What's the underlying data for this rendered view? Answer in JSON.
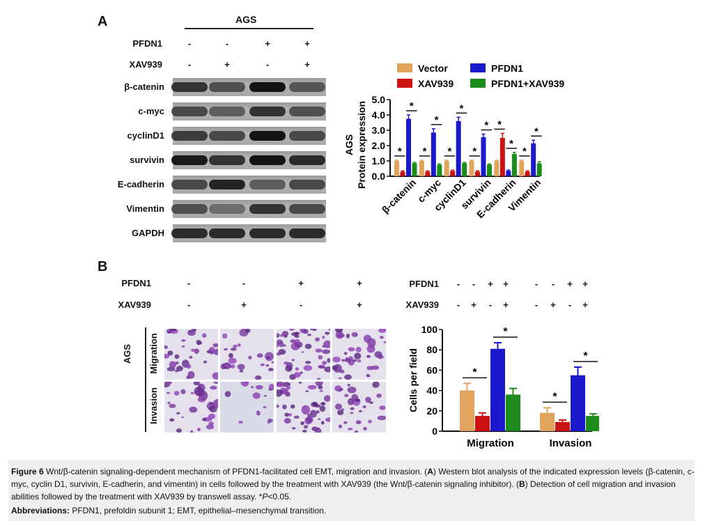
{
  "panelA": {
    "letter": "A",
    "cell_line": "AGS",
    "treatments": [
      {
        "label": "PFDN1",
        "signs": [
          "-",
          "-",
          "+",
          "+"
        ]
      },
      {
        "label": "XAV939",
        "signs": [
          "-",
          "+",
          "-",
          "+"
        ]
      }
    ],
    "blot_rows": [
      {
        "label": "β-catenin",
        "intensity": [
          0.75,
          0.55,
          0.95,
          0.5
        ]
      },
      {
        "label": "c-myc",
        "intensity": [
          0.6,
          0.45,
          0.75,
          0.55
        ]
      },
      {
        "label": "cyclinD1",
        "intensity": [
          0.7,
          0.6,
          0.95,
          0.6
        ]
      },
      {
        "label": "survivin",
        "intensity": [
          0.9,
          0.75,
          0.95,
          0.8
        ]
      },
      {
        "label": "E-cadherin",
        "intensity": [
          0.6,
          0.85,
          0.45,
          0.6
        ]
      },
      {
        "label": "Vimentin",
        "intensity": [
          0.55,
          0.3,
          0.75,
          0.6
        ]
      },
      {
        "label": "GAPDH",
        "intensity": [
          0.8,
          0.8,
          0.8,
          0.8
        ]
      }
    ]
  },
  "panelB": {
    "letter": "B",
    "treatments": [
      {
        "label": "PFDN1",
        "signs": [
          "-",
          "-",
          "+",
          "+"
        ]
      },
      {
        "label": "XAV939",
        "signs": [
          "-",
          "+",
          "-",
          "+"
        ]
      }
    ],
    "side_label": "AGS",
    "row_labels": [
      "Migration",
      "Invasion"
    ],
    "chart_treatments": [
      {
        "label": "PFDN1",
        "signs": [
          "-",
          "-",
          "+",
          "+",
          "-",
          "-",
          "+",
          "+"
        ]
      },
      {
        "label": "XAV939",
        "signs": [
          "-",
          "+",
          "-",
          "+",
          "-",
          "+",
          "-",
          "+"
        ]
      }
    ]
  },
  "colors": {
    "vector": "#e0a45c",
    "xav939": "#cc1111",
    "pfdn1": "#1a1acc",
    "pfdn1_xav939": "#1c8c1c"
  },
  "chart_data": [
    {
      "type": "bar",
      "title": "",
      "xlabel": "",
      "ylabel": "Protein expression",
      "side_label": "AGS",
      "categories": [
        "β-catenin",
        "c-myc",
        "cyclinD1",
        "survivin",
        "E-cadherin",
        "Vimentin"
      ],
      "ylim": [
        0,
        5.0
      ],
      "yticks": [
        "0.0",
        "1.0",
        "2.0",
        "3.0",
        "4.0",
        "5.0"
      ],
      "legend": [
        "Vector",
        "XAV939",
        "PFDN1",
        "PFDN1+XAV939"
      ],
      "legend_position": "top",
      "series": [
        {
          "name": "Vector",
          "values": [
            1.0,
            1.0,
            1.0,
            1.0,
            1.0,
            1.0
          ],
          "errors": [
            0.05,
            0.05,
            0.05,
            0.05,
            0.05,
            0.05
          ]
        },
        {
          "name": "XAV939",
          "values": [
            0.3,
            0.3,
            0.35,
            0.3,
            2.5,
            0.3
          ],
          "errors": [
            0.05,
            0.05,
            0.05,
            0.05,
            0.3,
            0.05
          ]
        },
        {
          "name": "PFDN1",
          "values": [
            3.75,
            2.85,
            3.6,
            2.55,
            0.35,
            2.15
          ],
          "errors": [
            0.25,
            0.25,
            0.25,
            0.2,
            0.05,
            0.2
          ]
        },
        {
          "name": "PFDN1+XAV939",
          "values": [
            0.85,
            0.75,
            0.85,
            0.75,
            1.45,
            0.85
          ],
          "errors": [
            0.05,
            0.05,
            0.05,
            0.05,
            0.1,
            0.1
          ]
        }
      ],
      "significance": "*"
    },
    {
      "type": "bar",
      "title": "",
      "xlabel": "",
      "ylabel": "Cells per field",
      "categories": [
        "Migration",
        "Invasion"
      ],
      "ylim": [
        0,
        100
      ],
      "yticks": [
        "0",
        "20",
        "40",
        "60",
        "80",
        "100"
      ],
      "series": [
        {
          "name": "Vector",
          "values": [
            40,
            18
          ],
          "errors": [
            7,
            5
          ]
        },
        {
          "name": "XAV939",
          "values": [
            15,
            9
          ],
          "errors": [
            3,
            2
          ]
        },
        {
          "name": "PFDN1",
          "values": [
            81,
            55
          ],
          "errors": [
            6,
            8
          ]
        },
        {
          "name": "PFDN1+XAV939",
          "values": [
            36,
            15
          ],
          "errors": [
            6,
            2
          ]
        }
      ],
      "significance": "*"
    }
  ],
  "caption": {
    "line1_bold": "Figure 6",
    "line1": " Wnt/β-catenin signaling-dependent mechanism of PFDN1-facilitated cell EMT, migration and invasion. (",
    "a_letter": "A",
    "line1b": ") Western blot analysis of the indicated expression levels (β-catenin, c-myc, cyclin D1, survivin, E-cadherin, and vimentin) in cells followed by the treatment with XAV939 (the Wnt/β-catenin signaling inhibitor). (",
    "b_letter": "B",
    "line1c": ") Detection of cell migration and invasion abilities followed by the treatment with XAV939 by transwell assay. *",
    "p_italic": "P",
    "line1d": "<0.05.",
    "abbr_bold": "Abbreviations:",
    "abbr": " PFDN1, prefoldin subunit 1; EMT, epithelial–mesenchymal transition."
  }
}
